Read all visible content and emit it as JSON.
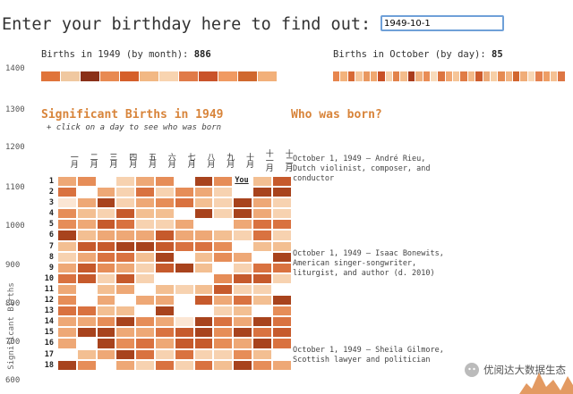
{
  "prompt": {
    "text": "Enter your birthday here to find out:",
    "input_value": "1949-10-1"
  },
  "y_axis": {
    "title": "Significant Births",
    "ticks": [
      "1400",
      "1300",
      "1200",
      "1100",
      "1000",
      "900",
      "800",
      "700",
      "600"
    ]
  },
  "month_summary": {
    "label": "Births in 1949 (by month):",
    "value": "886"
  },
  "day_summary": {
    "label": "Births in October (by day):",
    "value": "85"
  },
  "month_strip_colors": [
    "#e0743a",
    "#f0c8a0",
    "#8a3018",
    "#e88a52",
    "#d55f2a",
    "#f2b884",
    "#f8d4b0",
    "#e07a48",
    "#c9532a",
    "#f09a62",
    "#d0682e",
    "#f2b07a"
  ],
  "day_strip_colors": [
    "#e7864e",
    "#f3b37c",
    "#d76a36",
    "#f6c79c",
    "#e99860",
    "#f0a870",
    "#c85026",
    "#f7d2ad",
    "#e2824a",
    "#f4bc8b",
    "#a93b1c",
    "#efb07e",
    "#e98d56",
    "#f8dbbb",
    "#dc7440",
    "#f1a772",
    "#f6c597",
    "#e07c46",
    "#f3b988",
    "#cd5c2c",
    "#ecaa78",
    "#f7cfa6",
    "#e58a52",
    "#f2b584",
    "#d2662f",
    "#f0ad78",
    "#f8d7b5",
    "#e48250",
    "#ee9e66",
    "#f5c193",
    "#dd7644"
  ],
  "headings": {
    "left": "Significant Births in 1949",
    "right": "Who was born?"
  },
  "hint": "+ click on a day to see who was born",
  "months": [
    "一月",
    "二月",
    "三月",
    "四月",
    "五月",
    "六月",
    "七月",
    "八月",
    "九月",
    "十月",
    "十一月",
    "十二月"
  ],
  "days": [
    "1",
    "2",
    "3",
    "4",
    "5",
    "6",
    "7",
    "8",
    "9",
    "10",
    "11",
    "12",
    "13",
    "14",
    "15",
    "16",
    "17",
    "18"
  ],
  "you_label": "You",
  "events": [
    "October 1, 1949 – André Rieu, Dutch violinist, composer, and conductor",
    "October 1, 1949 – Isaac Bonewits, American singer-songwriter, liturgist, and author (d. 2010)",
    "October 1, 1949 – Sheila Gilmore, Scottish lawyer and politician"
  ],
  "watermark": {
    "text": "优阅达大数据生态"
  },
  "colors": {
    "accent": "#d8843a",
    "input_border": "#6fa0d8"
  }
}
